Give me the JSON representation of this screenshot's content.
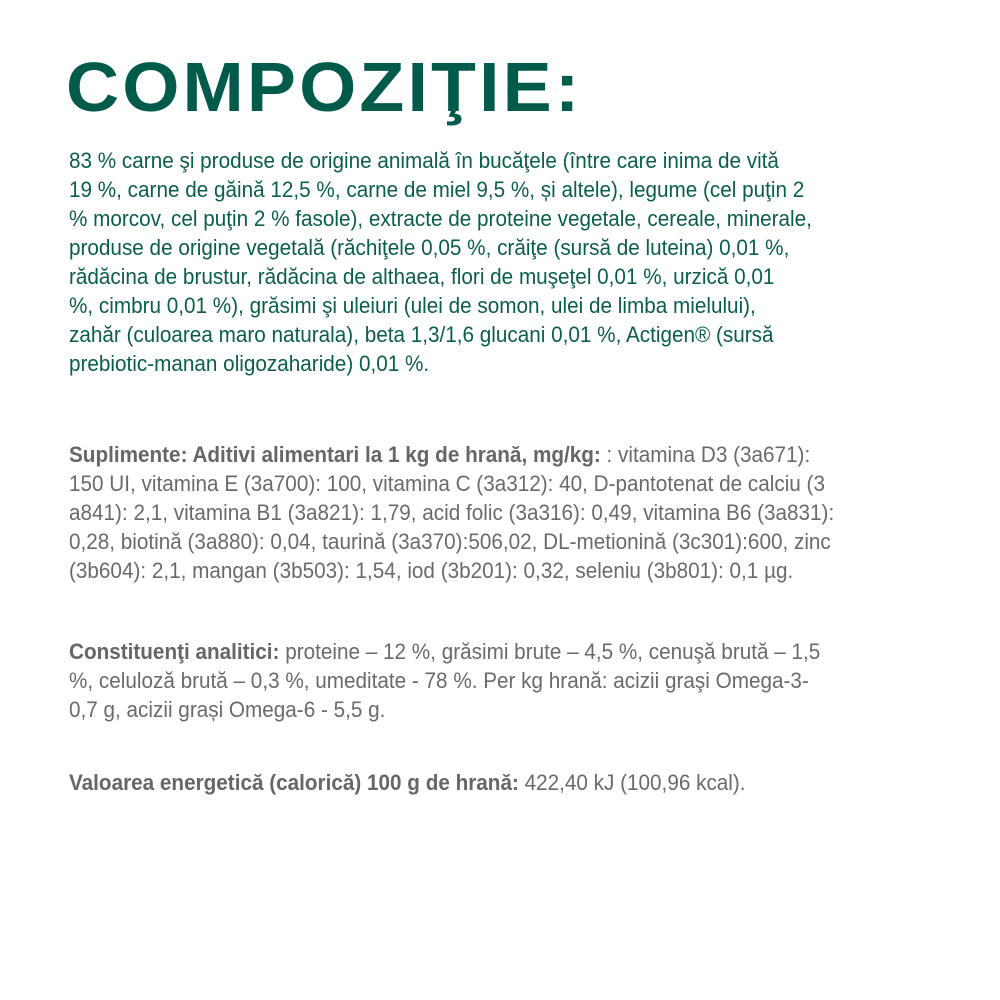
{
  "title": "COMPOZIŢIE:",
  "colors": {
    "title": "#005b4b",
    "composition_text": "#0b5e4c",
    "body_text": "#6a6a6a"
  },
  "composition_lines": [
    "83 % carne şi produse de origine animală în bucăţele (între care  inima de vită",
    "19 %,  carne de găină 12,5  %, carne de miel 9,5 %, și altele), legume (cel puţin 2",
    "% morcov, cel puţin 2 % fasole), extracte de proteine vegetale, cereale, minerale,",
    "produse de origine vegetală (răchiţele 0,05 %, crăiţe (sursă de luteina) 0,01 %,",
    "rădăcina de brustur, rădăcina de althaea, flori de muşeţel 0,01 %, urzică 0,01",
    "%, cimbru 0,01 %), grăsimi şi uleiuri (ulei de somon, ulei de limba mielului),",
    "zahăr (culoarea maro naturala), beta 1,3/1,6 glucani 0,01 %, Actigen® (sursă",
    "prebiotic-manan oligozaharide) 0,01 %."
  ],
  "supplements": {
    "label": "Suplimente: Aditivi alimentari la 1 kg de hrană, mg/kg:",
    "first_line_rest": " : vitamina D3 (3a671):",
    "lines": [
      "150 UI, vitamina E (3a700): 100, vitamina C (3a312): 40, D-pantotenat de calciu (3",
      "a841): 2,1, vitamina B1 (3a821): 1,79, acid folic (3a316): 0,49, vitamina B6 (3a831):",
      "0,28, biotină (3a880): 0,04, taurină (3a370):506,02, DL-metionină (3c301):600, zinc",
      "(3b604): 2,1, mangan (3b503): 1,54, iod (3b201): 0,32, seleniu (3b801): 0,1 µg."
    ]
  },
  "analytical": {
    "label": "Constituenţi analitici:",
    "first_line_rest": " proteine – 12 %, grăsimi brute – 4,5 %, cenuşă brută – 1,5",
    "lines": [
      "%, celuloză brută – 0,3 %, umeditate - 78 %. Per kg hrană: acizii graşi Omega-3-",
      "0,7 g, acizii grași Omega-6 - 5,5 g."
    ]
  },
  "energy": {
    "label": "Valoarea energetică (calorică) 100 g de hrană:",
    "value": " 422,40 kJ (100,96 kcal)."
  }
}
